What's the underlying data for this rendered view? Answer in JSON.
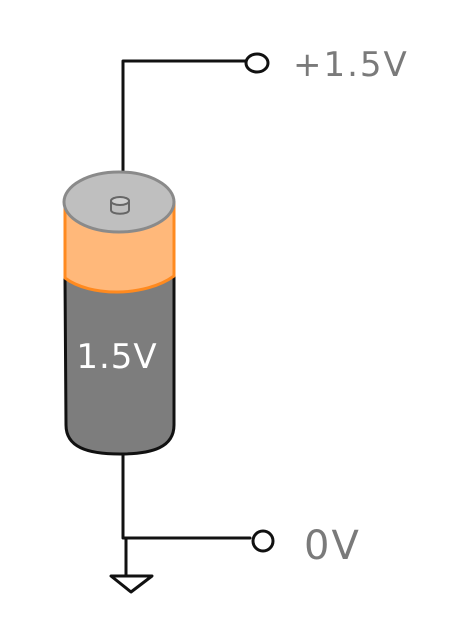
{
  "diagram": {
    "battery": {
      "label": "1.5V"
    },
    "terminals": {
      "positive_label": "+1.5V",
      "ground_label": "0V"
    },
    "colors": {
      "wire": "#111111",
      "cap": "#bfbfbf",
      "cap_stroke": "#8a8a8a",
      "band": "#ffb87a",
      "band_stroke": "#ff8a1f",
      "body": "#7d7d7d",
      "label_text": "#ffffff",
      "terminal_label": "#7a7a7a"
    },
    "icons": {
      "ground": "ground-symbol-icon",
      "terminal": "open-terminal-circle-icon"
    }
  }
}
